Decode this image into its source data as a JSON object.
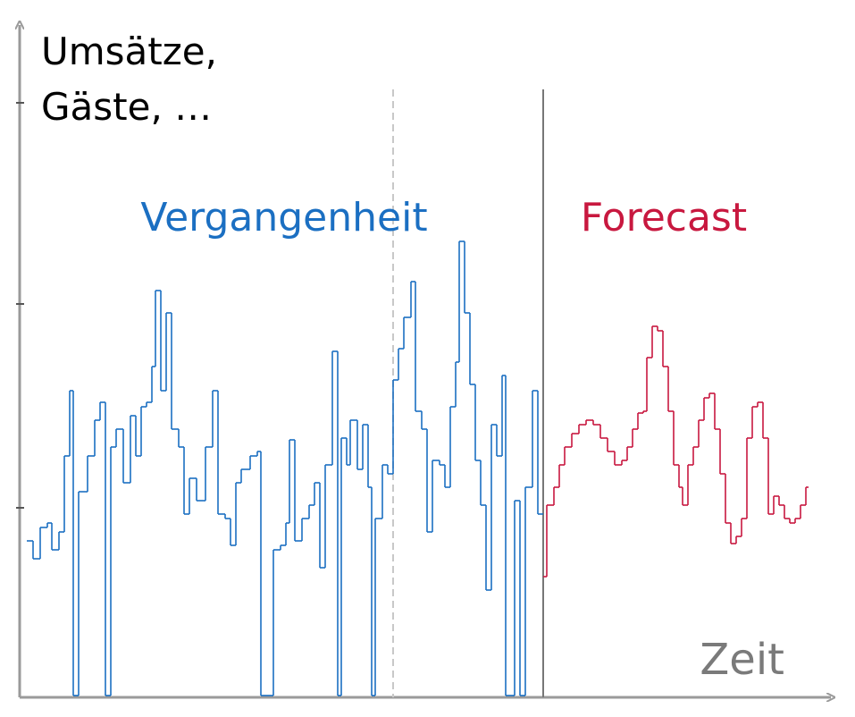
{
  "chart_data": {
    "type": "step",
    "ylabel": [
      "Umsätze,",
      "Gäste, …"
    ],
    "xlabel": "Zeit",
    "xlim": [
      0,
      895
    ],
    "ylim": [
      0,
      750
    ],
    "yticks": [
      210,
      438,
      663
    ],
    "series": [
      {
        "name": "Vergangenheit",
        "color": "#1b6fc2",
        "x": [
          0,
          7,
          15,
          23,
          28,
          36,
          42,
          48,
          52,
          58,
          68,
          76,
          82,
          88,
          94,
          100,
          108,
          116,
          122,
          128,
          134,
          140,
          144,
          150,
          156,
          162,
          170,
          176,
          182,
          190,
          200,
          208,
          214,
          222,
          228,
          234,
          240,
          250,
          258,
          262,
          276,
          284,
          290,
          294,
          300,
          308,
          316,
          322,
          328,
          334,
          342,
          348,
          352,
          358,
          362,
          370,
          376,
          382,
          386,
          390,
          398,
          404,
          410,
          416,
          422,
          430,
          435,
          442,
          448,
          454,
          462,
          468,
          474,
          480,
          484,
          490,
          496,
          502,
          508,
          514,
          520,
          526,
          532,
          536,
          546,
          552,
          558,
          566,
          572
        ],
        "values": [
          173,
          153,
          188,
          193,
          163,
          183,
          268,
          341,
          0,
          228,
          268,
          308,
          328,
          0,
          278,
          298,
          238,
          313,
          268,
          323,
          328,
          368,
          453,
          341,
          428,
          298,
          278,
          203,
          243,
          218,
          278,
          341,
          203,
          198,
          168,
          238,
          253,
          268,
          273,
          0,
          163,
          168,
          193,
          286,
          173,
          198,
          213,
          238,
          143,
          258,
          385,
          0,
          288,
          258,
          308,
          253,
          303,
          233,
          0,
          198,
          258,
          248,
          353,
          388,
          423,
          463,
          318,
          298,
          183,
          263,
          258,
          233,
          323,
          373,
          508,
          428,
          348,
          263,
          213,
          118,
          303,
          268,
          358,
          0,
          218,
          0,
          233,
          341,
          203
        ]
      },
      {
        "name": "Forecast",
        "color": "#c8183f",
        "x": [
          578,
          582,
          590,
          596,
          602,
          610,
          618,
          626,
          634,
          642,
          650,
          658,
          666,
          672,
          678,
          684,
          690,
          694,
          700,
          706,
          712,
          718,
          724,
          730,
          734,
          740,
          746,
          752,
          758,
          764,
          770,
          776,
          782,
          788,
          794,
          800,
          806,
          812,
          818,
          824,
          830,
          836,
          842,
          848,
          854,
          860,
          866,
          872
        ],
        "values": [
          133,
          213,
          233,
          258,
          278,
          293,
          303,
          308,
          303,
          288,
          273,
          258,
          263,
          278,
          298,
          316,
          318,
          378,
          413,
          408,
          368,
          318,
          258,
          233,
          213,
          258,
          278,
          308,
          333,
          338,
          298,
          248,
          193,
          170,
          178,
          198,
          288,
          323,
          328,
          288,
          203,
          223,
          213,
          198,
          193,
          198,
          213,
          233
        ]
      }
    ]
  }
}
